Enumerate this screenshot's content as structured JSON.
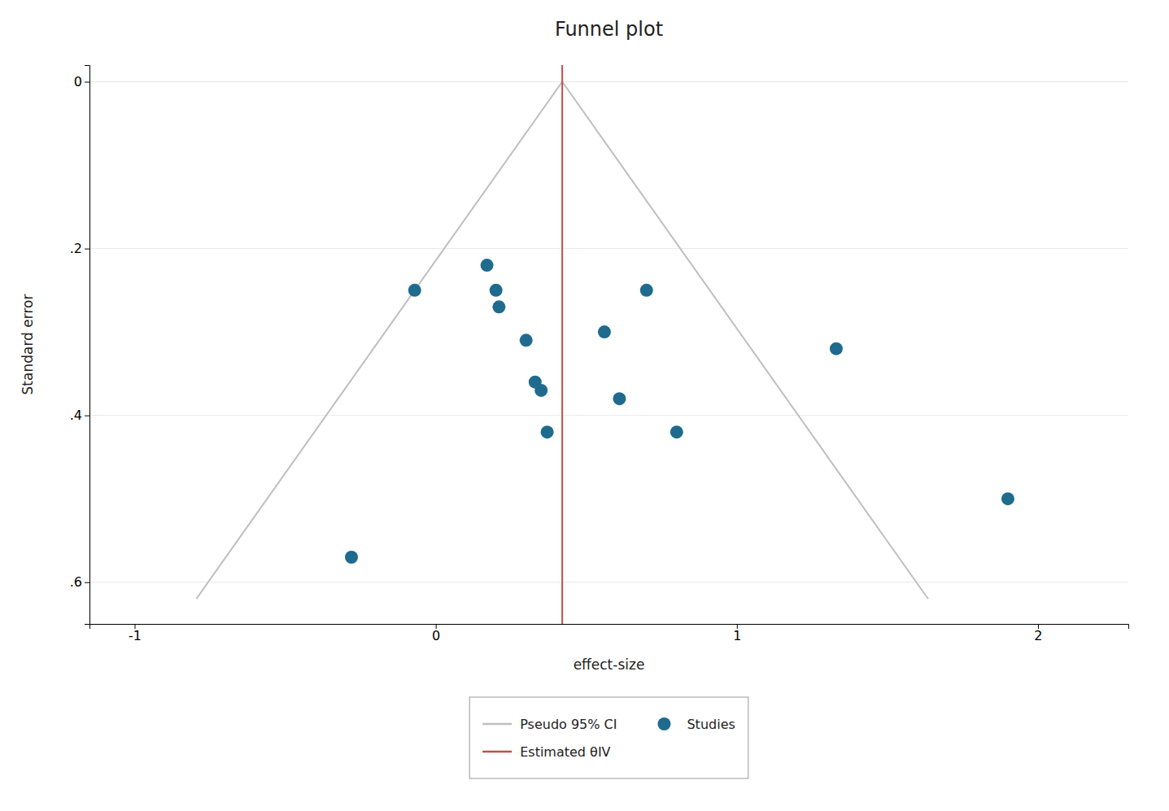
{
  "chart_data": {
    "type": "scatter",
    "title": "Funnel plot",
    "xlabel": "effect-size",
    "ylabel": "Standard error",
    "xlim": [
      -1.15,
      2.3
    ],
    "ylim": [
      0.65,
      -0.02
    ],
    "xticks": [
      -1,
      0,
      1,
      2
    ],
    "yticks": [
      0,
      {
        "value": 0.2,
        "label": ".2"
      },
      {
        "value": 0.4,
        "label": ".4"
      },
      {
        "value": 0.6,
        "label": ".6"
      }
    ],
    "grid": "y",
    "legend": "bottom",
    "series": [
      {
        "name": "Pseudo 95% CI",
        "type": "line",
        "line_style": "solid",
        "color": "#BFBFBF",
        "x": [
          -0.7952,
          0.42,
          1.6352
        ],
        "values": [
          0.62,
          0,
          0.62
        ]
      },
      {
        "name": "Studies",
        "type": "scatter",
        "marker": "circle",
        "color": "#1F6B8E",
        "x": [
          -0.07,
          0.17,
          0.2,
          0.21,
          0.3,
          0.33,
          0.35,
          0.37,
          0.56,
          0.61,
          0.7,
          0.8,
          1.33,
          -0.28,
          1.9
        ],
        "values": [
          0.25,
          0.22,
          0.25,
          0.27,
          0.31,
          0.36,
          0.37,
          0.42,
          0.3,
          0.38,
          0.25,
          0.42,
          0.32,
          0.57,
          0.5
        ]
      },
      {
        "name": "Estimated θIV",
        "type": "vline",
        "line_style": "solid",
        "color": "#C0504D",
        "x": [
          0.42
        ]
      }
    ]
  }
}
